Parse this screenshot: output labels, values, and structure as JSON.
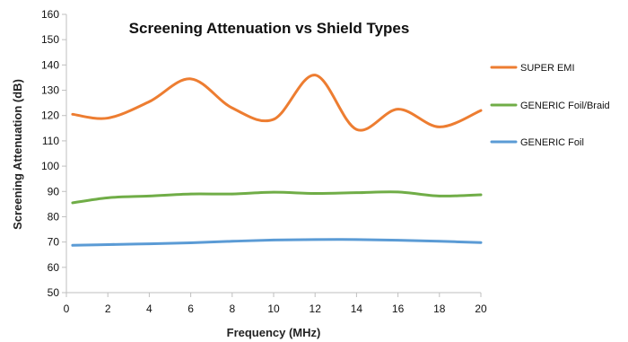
{
  "chart_data": {
    "type": "line",
    "title": "Screening Attenuation vs Shield Types",
    "xlabel": "Frequency (MHz)",
    "ylabel": "Screening Attenuation (dB)",
    "xlim": [
      0,
      20
    ],
    "ylim": [
      50,
      160
    ],
    "x_ticks": [
      0,
      2,
      4,
      6,
      8,
      10,
      12,
      14,
      16,
      18,
      20
    ],
    "y_ticks": [
      50,
      60,
      70,
      80,
      90,
      100,
      110,
      120,
      130,
      140,
      150,
      160
    ],
    "grid": false,
    "legend_position": "right",
    "series": [
      {
        "name": "SUPER EMI",
        "color": "#ED7D31",
        "points": [
          [
            0.3,
            120.5
          ],
          [
            2,
            119
          ],
          [
            4,
            125.5
          ],
          [
            6,
            134.5
          ],
          [
            8,
            123
          ],
          [
            10,
            118.5
          ],
          [
            12,
            136
          ],
          [
            14,
            114.5
          ],
          [
            16,
            122.5
          ],
          [
            18,
            115.5
          ],
          [
            20,
            122
          ]
        ]
      },
      {
        "name": "GENERIC Foil/Braid",
        "color": "#70AD47",
        "points": [
          [
            0.3,
            85.5
          ],
          [
            2,
            87.5
          ],
          [
            4,
            88.2
          ],
          [
            6,
            89
          ],
          [
            8,
            89
          ],
          [
            10,
            89.7
          ],
          [
            12,
            89.2
          ],
          [
            14,
            89.5
          ],
          [
            16,
            89.8
          ],
          [
            18,
            88.2
          ],
          [
            20,
            88.7
          ]
        ]
      },
      {
        "name": "GENERIC Foil",
        "color": "#5B9BD5",
        "points": [
          [
            0.3,
            68.7
          ],
          [
            2,
            69
          ],
          [
            4,
            69.3
          ],
          [
            6,
            69.7
          ],
          [
            8,
            70.3
          ],
          [
            10,
            70.8
          ],
          [
            12,
            71
          ],
          [
            14,
            71
          ],
          [
            16,
            70.7
          ],
          [
            18,
            70.3
          ],
          [
            20,
            69.8
          ]
        ]
      }
    ]
  }
}
